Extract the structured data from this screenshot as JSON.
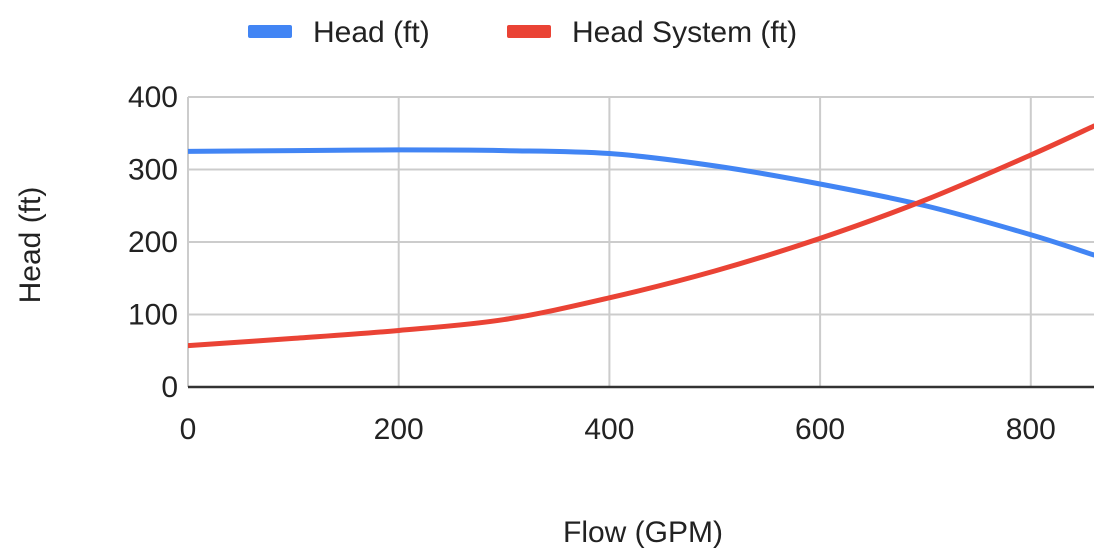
{
  "chart_data": {
    "type": "line",
    "title": "",
    "xlabel": "Flow (GPM)",
    "ylabel": "Head (ft)",
    "xlim": [
      0,
      860
    ],
    "ylim": [
      0,
      400
    ],
    "xticks": [
      0,
      200,
      400,
      600,
      800
    ],
    "yticks": [
      0,
      100,
      200,
      300,
      400
    ],
    "grid": true,
    "legend_position": "top-center",
    "series": [
      {
        "name": "Head (ft)",
        "color": "#4285f4",
        "points": [
          [
            0,
            325
          ],
          [
            100,
            326
          ],
          [
            200,
            327
          ],
          [
            300,
            326
          ],
          [
            400,
            322
          ],
          [
            500,
            305
          ],
          [
            600,
            280
          ],
          [
            700,
            250
          ],
          [
            800,
            210
          ],
          [
            860,
            182
          ]
        ]
      },
      {
        "name": "Head System (ft)",
        "color": "#ea4335",
        "points": [
          [
            0,
            57
          ],
          [
            100,
            67
          ],
          [
            200,
            78
          ],
          [
            300,
            93
          ],
          [
            400,
            123
          ],
          [
            500,
            160
          ],
          [
            600,
            205
          ],
          [
            700,
            258
          ],
          [
            800,
            320
          ],
          [
            860,
            360
          ]
        ]
      }
    ]
  }
}
